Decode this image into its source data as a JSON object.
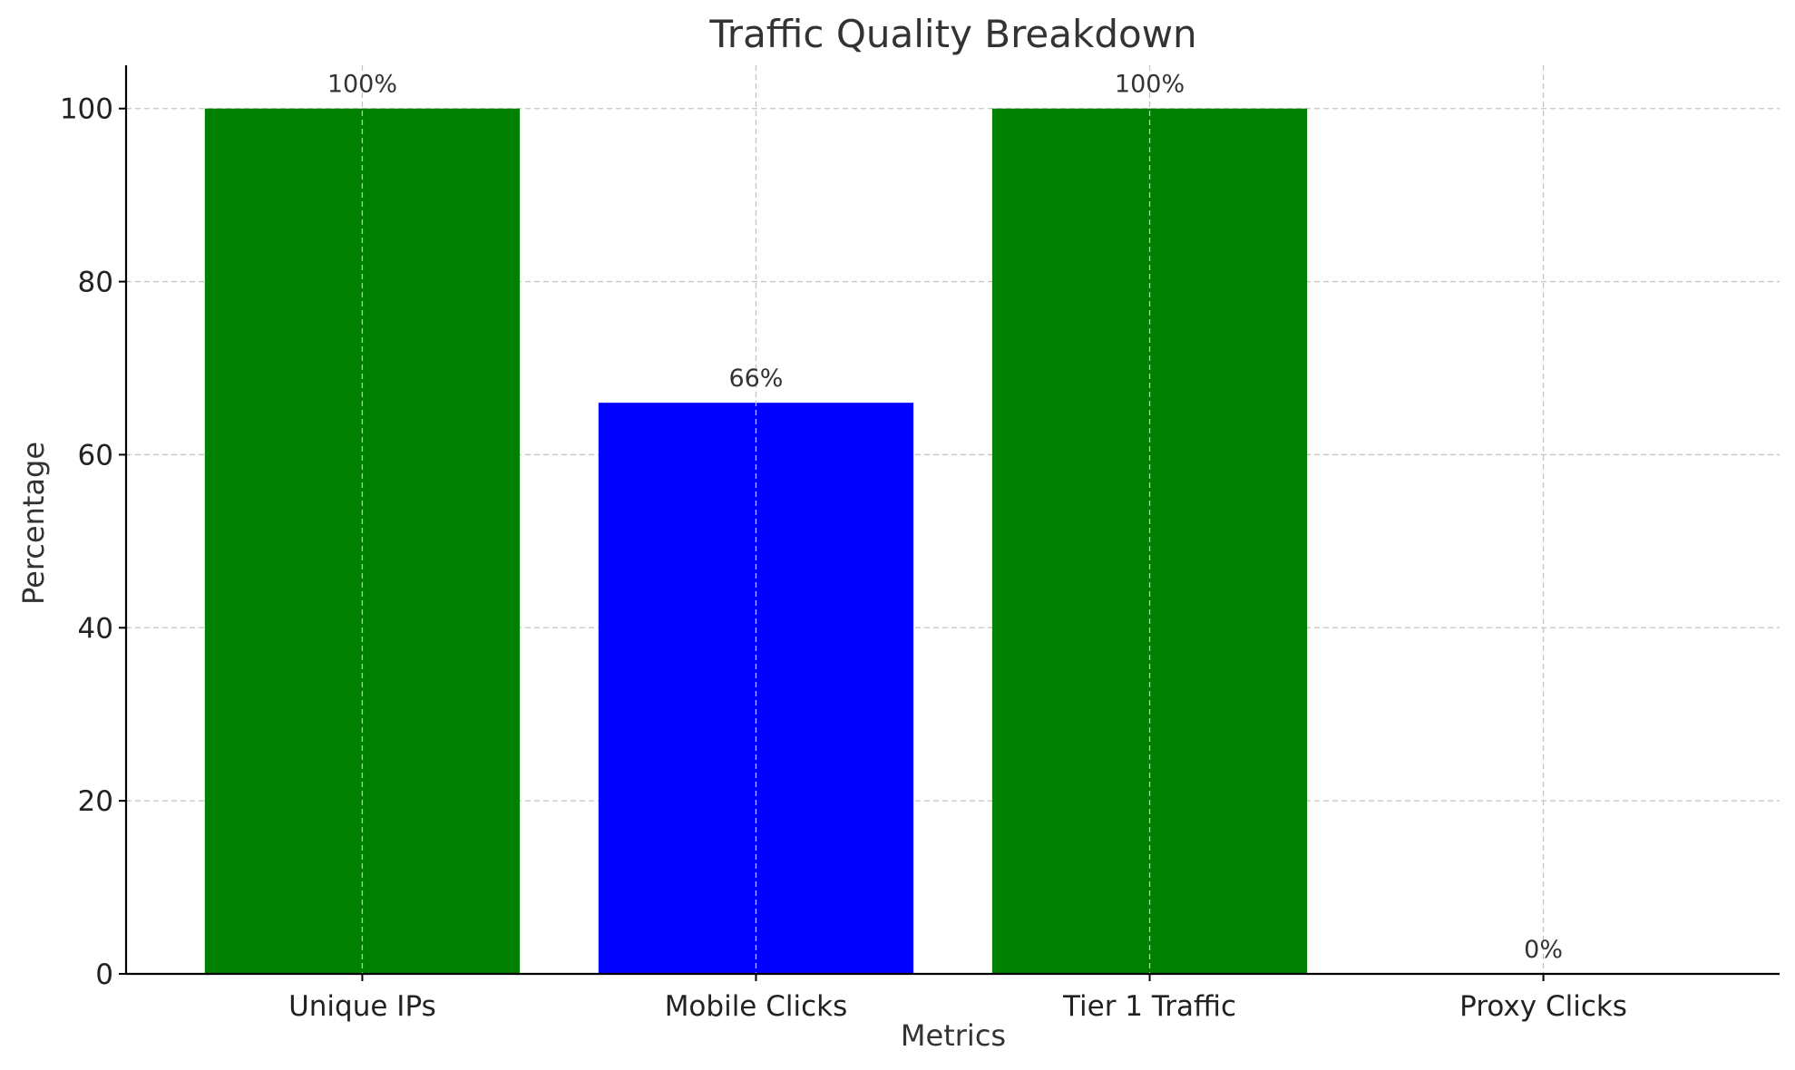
{
  "chart_data": {
    "type": "bar",
    "title": "Traffic Quality Breakdown",
    "xlabel": "Metrics",
    "ylabel": "Percentage",
    "categories": [
      "Unique IPs",
      "Mobile Clicks",
      "Tier 1 Traffic",
      "Proxy Clicks"
    ],
    "values": [
      100,
      66,
      100,
      0
    ],
    "value_labels": [
      "100%",
      "66%",
      "100%",
      "0%"
    ],
    "colors": [
      "#008000",
      "#0000ff",
      "#008000",
      "#ff0000"
    ],
    "ylim": [
      0,
      105
    ],
    "yticks": [
      0,
      20,
      40,
      60,
      80,
      100
    ],
    "grid": true
  }
}
